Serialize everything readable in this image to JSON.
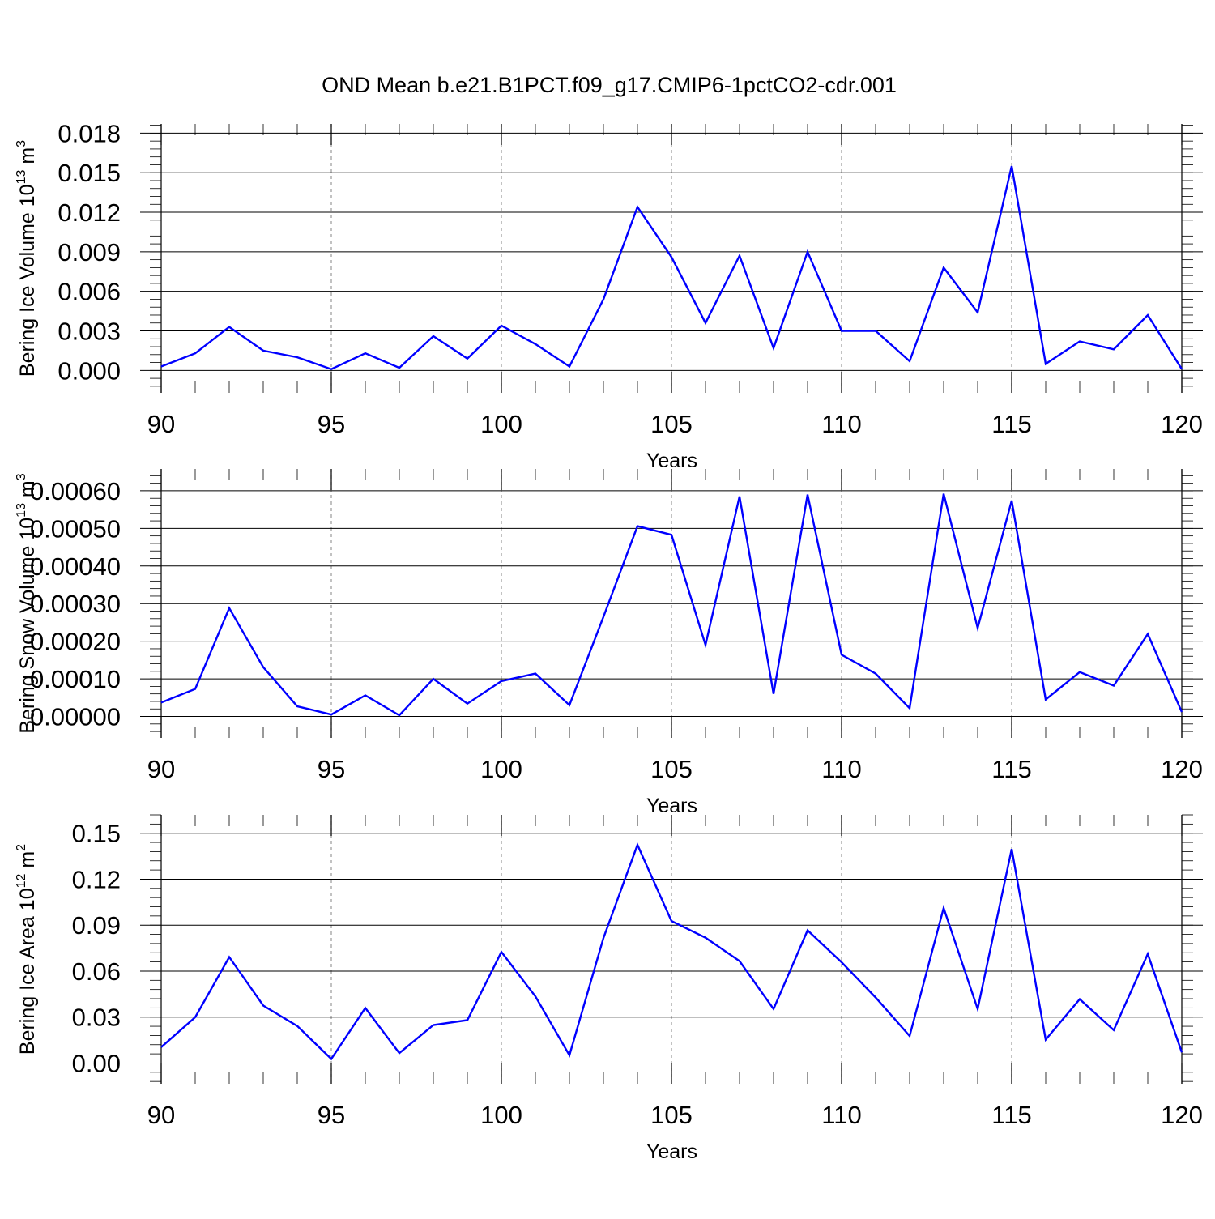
{
  "title": "OND Mean b.e21.B1PCT.f09_g17.CMIP6-1pctCO2-cdr.001",
  "line_color": "#0000ff",
  "chart_data": [
    {
      "type": "line",
      "title": "OND Mean b.e21.B1PCT.f09_g17.CMIP6-1pctCO2-cdr.001",
      "xlabel": "Years",
      "ylabel": "Bering Ice Volume 10",
      "ylabel_sup": "13",
      "ylabel_unit": "m",
      "ylabel_unit_sup": "3",
      "xlim": [
        90,
        120
      ],
      "ylim": [
        -0.0017,
        0.0187
      ],
      "xticks": [
        90,
        95,
        100,
        105,
        110,
        115,
        120
      ],
      "xtick_labels": [
        "90",
        "95",
        "100",
        "105",
        "110",
        "115",
        "120"
      ],
      "yticks": [
        0.0,
        0.003,
        0.006,
        0.009,
        0.012,
        0.015,
        0.018
      ],
      "ytick_labels": [
        "0.000",
        "0.003",
        "0.006",
        "0.009",
        "0.012",
        "0.015",
        "0.018"
      ],
      "yminor_step": 0.0006,
      "grid": "vertical dashed at major x ticks",
      "x": [
        90,
        91,
        92,
        93,
        94,
        95,
        96,
        97,
        98,
        99,
        100,
        101,
        102,
        103,
        104,
        105,
        106,
        107,
        108,
        109,
        110,
        111,
        112,
        113,
        114,
        115,
        116,
        117,
        118,
        119,
        120
      ],
      "values": [
        0.0003,
        0.0013,
        0.0033,
        0.0015,
        0.001,
        0.0001,
        0.0013,
        0.0002,
        0.0026,
        0.0009,
        0.0034,
        0.002,
        0.0003,
        0.0054,
        0.0124,
        0.0086,
        0.0036,
        0.0087,
        0.0017,
        0.009,
        0.003,
        0.003,
        0.0007,
        0.0078,
        0.0044,
        0.0155,
        0.0005,
        0.0022,
        0.0016,
        0.0042,
        0.0001
      ]
    },
    {
      "type": "line",
      "xlabel": "Years",
      "ylabel": "Bering Snow Volume 10",
      "ylabel_sup": "13",
      "ylabel_unit": "m",
      "ylabel_unit_sup": "3",
      "xlim": [
        90,
        120
      ],
      "ylim": [
        -5.7e-05,
        0.000658
      ],
      "xticks": [
        90,
        95,
        100,
        105,
        110,
        115,
        120
      ],
      "xtick_labels": [
        "90",
        "95",
        "100",
        "105",
        "110",
        "115",
        "120"
      ],
      "yticks": [
        0.0,
        0.0001,
        0.0002,
        0.0003,
        0.0004,
        0.0005,
        0.0006
      ],
      "ytick_labels": [
        "0.00000",
        "0.00010",
        "0.00020",
        "0.00030",
        "0.00040",
        "0.00050",
        "0.00060"
      ],
      "yminor_step": 2e-05,
      "grid": "vertical dashed at major x ticks",
      "x": [
        90,
        91,
        92,
        93,
        94,
        95,
        96,
        97,
        98,
        99,
        100,
        101,
        102,
        103,
        104,
        105,
        106,
        107,
        108,
        109,
        110,
        111,
        112,
        113,
        114,
        115,
        116,
        117,
        118,
        119,
        120
      ],
      "values": [
        3.7e-05,
        7.3e-05,
        0.000288,
        0.000131,
        2.7e-05,
        5e-06,
        5.6e-05,
        3e-06,
        0.0001,
        3.4e-05,
        9.4e-05,
        0.000114,
        3e-05,
        0.000265,
        0.000506,
        0.000483,
        0.00019,
        0.000585,
        6e-05,
        0.00059,
        0.000164,
        0.000114,
        2.2e-05,
        0.000592,
        0.000235,
        0.000574,
        4.5e-05,
        0.000118,
        8.2e-05,
        0.000219,
        1.2e-05
      ]
    },
    {
      "type": "line",
      "xlabel": "Years",
      "ylabel": "Bering Ice Area 10",
      "ylabel_sup": "12",
      "ylabel_unit": "m",
      "ylabel_unit_sup": "2",
      "xlim": [
        90,
        120
      ],
      "ylim": [
        -0.0135,
        0.162
      ],
      "xticks": [
        90,
        95,
        100,
        105,
        110,
        115,
        120
      ],
      "xtick_labels": [
        "90",
        "95",
        "100",
        "105",
        "110",
        "115",
        "120"
      ],
      "yticks": [
        0.0,
        0.03,
        0.06,
        0.09,
        0.12,
        0.15
      ],
      "ytick_labels": [
        "0.00",
        "0.03",
        "0.06",
        "0.09",
        "0.12",
        "0.15"
      ],
      "yminor_step": 0.006,
      "grid": "vertical dashed at major x ticks",
      "x": [
        90,
        91,
        92,
        93,
        94,
        95,
        96,
        97,
        98,
        99,
        100,
        101,
        102,
        103,
        104,
        105,
        106,
        107,
        108,
        109,
        110,
        111,
        112,
        113,
        114,
        115,
        116,
        117,
        118,
        119,
        120
      ],
      "values": [
        0.0104,
        0.0299,
        0.0692,
        0.0375,
        0.0242,
        0.0027,
        0.0359,
        0.0065,
        0.0248,
        0.028,
        0.0725,
        0.0435,
        0.0051,
        0.0816,
        0.1424,
        0.0927,
        0.0818,
        0.0666,
        0.0353,
        0.0866,
        0.0658,
        0.0428,
        0.0177,
        0.1012,
        0.0353,
        0.1397,
        0.0153,
        0.0417,
        0.0215,
        0.0712,
        0.007
      ]
    }
  ]
}
